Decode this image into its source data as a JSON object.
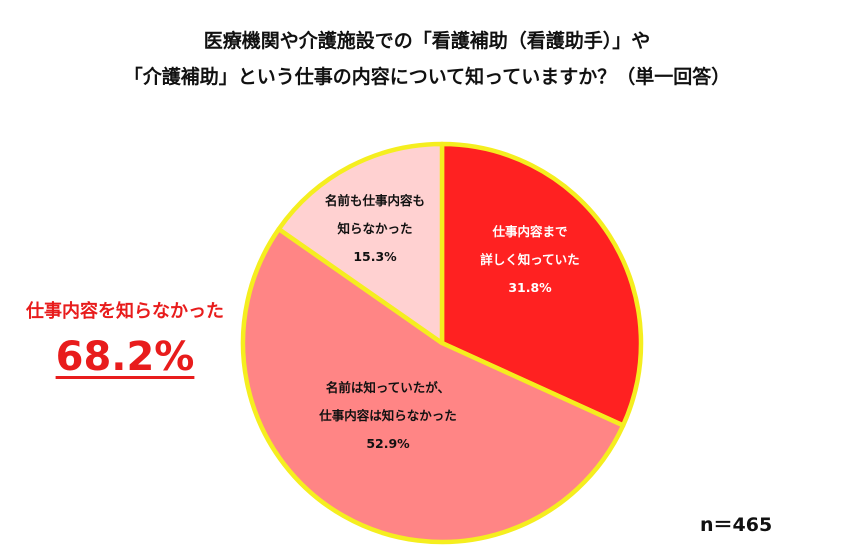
{
  "title_line1": "医療機関や介護施設での「看護補助（看護助手）」や",
  "title_line2": "「介護補助」という仕事の内容について知っていますか？（単一回答）",
  "callout": {
    "label": "仕事内容を知らなかった",
    "value": "68.2%",
    "color": "#e81c1c"
  },
  "sample_size": "n＝465",
  "chart_data": {
    "type": "pie",
    "slices": [
      {
        "lines": [
          "仕事内容まで",
          "詳しく知っていた"
        ],
        "value": 31.8,
        "value_label": "31.8%",
        "color": "#ff2121",
        "text_color": "#ffffff"
      },
      {
        "lines": [
          "名前は知っていたが、",
          "仕事内容は知らなかった"
        ],
        "value": 52.9,
        "value_label": "52.9%",
        "color": "#ff8585",
        "text_color": "#111111"
      },
      {
        "lines": [
          "名前も仕事内容も",
          "知らなかった"
        ],
        "value": 15.3,
        "value_label": "15.3%",
        "color": "#ffd1d1",
        "text_color": "#111111"
      }
    ],
    "outline_color": "#f5ee1f",
    "start": "12 o'clock, clockwise"
  }
}
